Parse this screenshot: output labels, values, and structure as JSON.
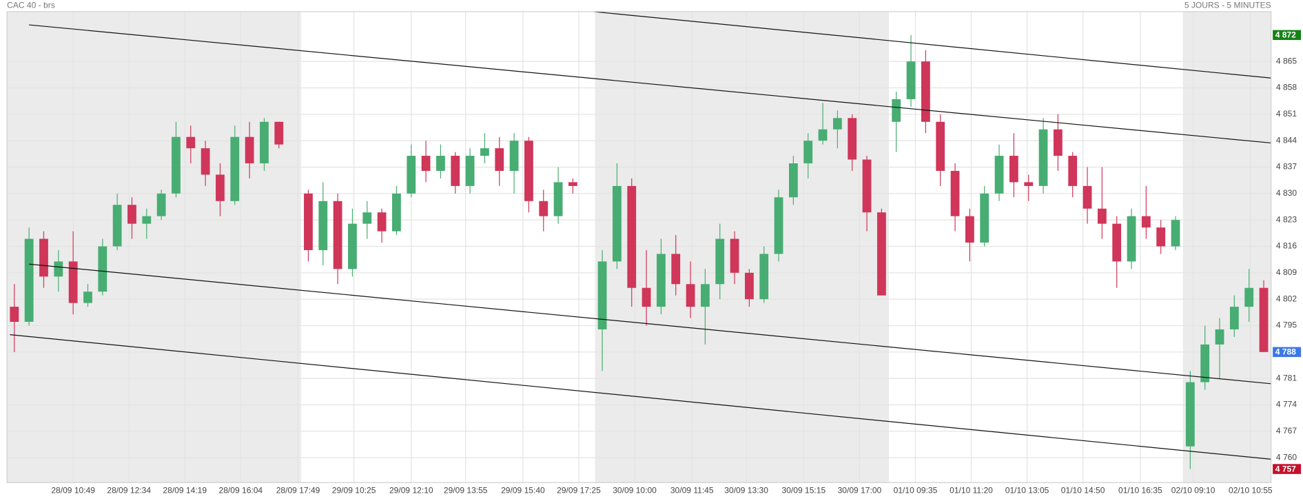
{
  "chart_data": {
    "type": "candlestick",
    "title": "CAC 40 - brs",
    "subtitle": "5 JOURS - 5 MINUTES",
    "up_color": "#47ad72",
    "down_color": "#cf3659",
    "shade_color": "#ebebeb",
    "grid": true,
    "xlim": [
      0,
      86
    ],
    "ylim": [
      4753.4,
      4878.2
    ],
    "yticks": [
      {
        "value": 4760,
        "label": "4 760"
      },
      {
        "value": 4767,
        "label": "4 767"
      },
      {
        "value": 4774,
        "label": "4 774"
      },
      {
        "value": 4781,
        "label": "4 781"
      },
      {
        "value": 4788,
        "label": "4 788"
      },
      {
        "value": 4795,
        "label": "4 795"
      },
      {
        "value": 4802,
        "label": "4 802"
      },
      {
        "value": 4809,
        "label": "4 809"
      },
      {
        "value": 4816,
        "label": "4 816"
      },
      {
        "value": 4823,
        "label": "4 823"
      },
      {
        "value": 4830,
        "label": "4 830"
      },
      {
        "value": 4837,
        "label": "4 837"
      },
      {
        "value": 4844,
        "label": "4 844"
      },
      {
        "value": 4851,
        "label": "4 851"
      },
      {
        "value": 4858,
        "label": "4 858"
      },
      {
        "value": 4865,
        "label": "4 865"
      }
    ],
    "xticks": [
      {
        "value": 4.5,
        "label": "28/09 10:49"
      },
      {
        "value": 8.3,
        "label": "28/09 12:34"
      },
      {
        "value": 12.1,
        "label": "28/09 14:19"
      },
      {
        "value": 15.9,
        "label": "28/09 16:04"
      },
      {
        "value": 19.8,
        "label": "28/09 17:49"
      },
      {
        "value": 23.6,
        "label": "29/09 10:25"
      },
      {
        "value": 27.5,
        "label": "29/09 12:10"
      },
      {
        "value": 31.2,
        "label": "29/09 13:55"
      },
      {
        "value": 35.1,
        "label": "29/09 15:40"
      },
      {
        "value": 38.9,
        "label": "29/09 17:25"
      },
      {
        "value": 42.7,
        "label": "30/09 10:00"
      },
      {
        "value": 46.6,
        "label": "30/09 11:45"
      },
      {
        "value": 50.3,
        "label": "30/09 13:30"
      },
      {
        "value": 54.2,
        "label": "30/09 15:15"
      },
      {
        "value": 58.0,
        "label": "30/09 17:00"
      },
      {
        "value": 61.8,
        "label": "01/10 09:35"
      },
      {
        "value": 65.6,
        "label": "01/10 11:20"
      },
      {
        "value": 69.4,
        "label": "01/10 13:05"
      },
      {
        "value": 73.2,
        "label": "01/10 14:50"
      },
      {
        "value": 77.1,
        "label": "01/10 16:35"
      },
      {
        "value": 80.7,
        "label": "02/10 09:10"
      },
      {
        "value": 84.6,
        "label": "02/10 10:55"
      }
    ],
    "shaded": [
      [
        0,
        20
      ],
      [
        40,
        60
      ],
      [
        80,
        86
      ]
    ],
    "x": [
      0.5,
      1.5,
      2.5,
      3.5,
      4.5,
      5.5,
      6.5,
      7.5,
      8.5,
      9.5,
      10.5,
      11.5,
      12.5,
      13.5,
      14.5,
      15.5,
      16.5,
      17.5,
      18.5,
      20.5,
      21.5,
      22.5,
      23.5,
      24.5,
      25.5,
      26.5,
      27.5,
      28.5,
      29.5,
      30.5,
      31.5,
      32.5,
      33.5,
      34.5,
      35.5,
      36.5,
      37.5,
      38.5,
      40.5,
      41.5,
      42.5,
      43.5,
      44.5,
      45.5,
      46.5,
      47.5,
      48.5,
      49.5,
      50.5,
      51.5,
      52.5,
      53.5,
      54.5,
      55.5,
      56.5,
      57.5,
      58.5,
      59.5,
      60.5,
      61.5,
      62.5,
      63.5,
      64.5,
      65.5,
      66.5,
      67.5,
      68.5,
      69.5,
      70.5,
      71.5,
      72.5,
      73.5,
      74.5,
      75.5,
      76.5,
      77.5,
      78.5,
      79.5,
      80.5,
      81.5,
      82.5,
      83.5,
      84.5,
      85.5
    ],
    "open": [
      4800,
      4796,
      4818,
      4808,
      4812,
      4801,
      4804,
      4816,
      4827,
      4822,
      4824,
      4830,
      4845,
      4842,
      4835,
      4828,
      4845,
      4838,
      4849,
      4830,
      4815,
      4828,
      4810,
      4822,
      4825,
      4820,
      4830,
      4840,
      4836,
      4840,
      4832,
      4840,
      4842,
      4836,
      4844,
      4828,
      4824,
      4833,
      4794,
      4812,
      4832,
      4805,
      4800,
      4814,
      4806,
      4800,
      4806,
      4818,
      4809,
      4802,
      4814,
      4829,
      4838,
      4844,
      4847,
      4850,
      4839,
      4825,
      4849,
      4855,
      4865,
      4849,
      4836,
      4824,
      4817,
      4830,
      4840,
      4833,
      4832,
      4847,
      4840,
      4832,
      4826,
      4822,
      4812,
      4824,
      4821,
      4816,
      4763,
      4780,
      4790,
      4794,
      4800,
      4805
    ],
    "high": [
      4806,
      4821,
      4820,
      4815,
      4820,
      4806,
      4818,
      4830,
      4829,
      4826,
      4831,
      4849,
      4848,
      4844,
      4838,
      4848,
      4849,
      4850,
      4849,
      4831,
      4833,
      4830,
      4826,
      4828,
      4826,
      4832,
      4843,
      4844,
      4843,
      4841,
      4842,
      4846,
      4845,
      4846,
      4845,
      4831,
      4837,
      4834,
      4815,
      4838,
      4834,
      4815,
      4818,
      4819,
      4812,
      4810,
      4822,
      4820,
      4810,
      4816,
      4831,
      4840,
      4846,
      4854,
      4852,
      4851,
      4840,
      4826,
      4857,
      4872,
      4868,
      4851,
      4838,
      4826,
      4832,
      4843,
      4846,
      4835,
      4850,
      4851,
      4841,
      4837,
      4837,
      4824,
      4826,
      4832,
      4823,
      4824,
      4783,
      4795,
      4797,
      4803,
      4810,
      4807
    ],
    "low": [
      4788,
      4795,
      4805,
      4804,
      4798,
      4800,
      4803,
      4815,
      4818,
      4818,
      4823,
      4829,
      4838,
      4832,
      4824,
      4827,
      4834,
      4836,
      4842,
      4812,
      4811,
      4806,
      4808,
      4818,
      4817,
      4819,
      4829,
      4833,
      4834,
      4830,
      4830,
      4838,
      4832,
      4830,
      4825,
      4820,
      4822,
      4830,
      4783,
      4810,
      4800,
      4795,
      4798,
      4803,
      4797,
      4790,
      4802,
      4806,
      4800,
      4801,
      4812,
      4827,
      4834,
      4843,
      4842,
      4836,
      4820,
      4803,
      4841,
      4853,
      4846,
      4832,
      4820,
      4812,
      4816,
      4828,
      4829,
      4828,
      4830,
      4836,
      4829,
      4822,
      4818,
      4805,
      4810,
      4818,
      4814,
      4815,
      4757,
      4778,
      4781,
      4792,
      4796,
      4788
    ],
    "close": [
      4796,
      4818,
      4808,
      4812,
      4801,
      4804,
      4816,
      4827,
      4822,
      4824,
      4830,
      4845,
      4842,
      4835,
      4828,
      4845,
      4838,
      4849,
      4843,
      4815,
      4828,
      4810,
      4822,
      4825,
      4820,
      4830,
      4840,
      4836,
      4840,
      4832,
      4840,
      4842,
      4836,
      4844,
      4828,
      4824,
      4833,
      4832,
      4812,
      4832,
      4805,
      4800,
      4814,
      4806,
      4800,
      4806,
      4818,
      4809,
      4802,
      4814,
      4829,
      4838,
      4844,
      4847,
      4850,
      4839,
      4825,
      4803,
      4855,
      4865,
      4849,
      4836,
      4824,
      4817,
      4830,
      4840,
      4833,
      4832,
      4847,
      4840,
      4832,
      4826,
      4822,
      4812,
      4824,
      4821,
      4816,
      4823,
      4780,
      4790,
      4794,
      4800,
      4805,
      4788
    ],
    "lines": [
      {
        "x": [
          39.9,
          86
        ],
        "y": [
          4878.2,
          4860.6
        ]
      },
      {
        "x": [
          1.5,
          86
        ],
        "y": [
          4874.7,
          4843.4
        ]
      },
      {
        "x": [
          1.5,
          86
        ],
        "y": [
          4811.3,
          4779.6
        ]
      },
      {
        "x": [
          0.2,
          86
        ],
        "y": [
          4792.6,
          4759.6
        ]
      }
    ],
    "price_tags": [
      {
        "value": 4872,
        "label": "4 872",
        "color": "#168216"
      },
      {
        "value": 4788,
        "label": "4 788",
        "color": "#3a78e8"
      },
      {
        "value": 4757,
        "label": "4 757",
        "color": "#c4102c"
      }
    ]
  }
}
